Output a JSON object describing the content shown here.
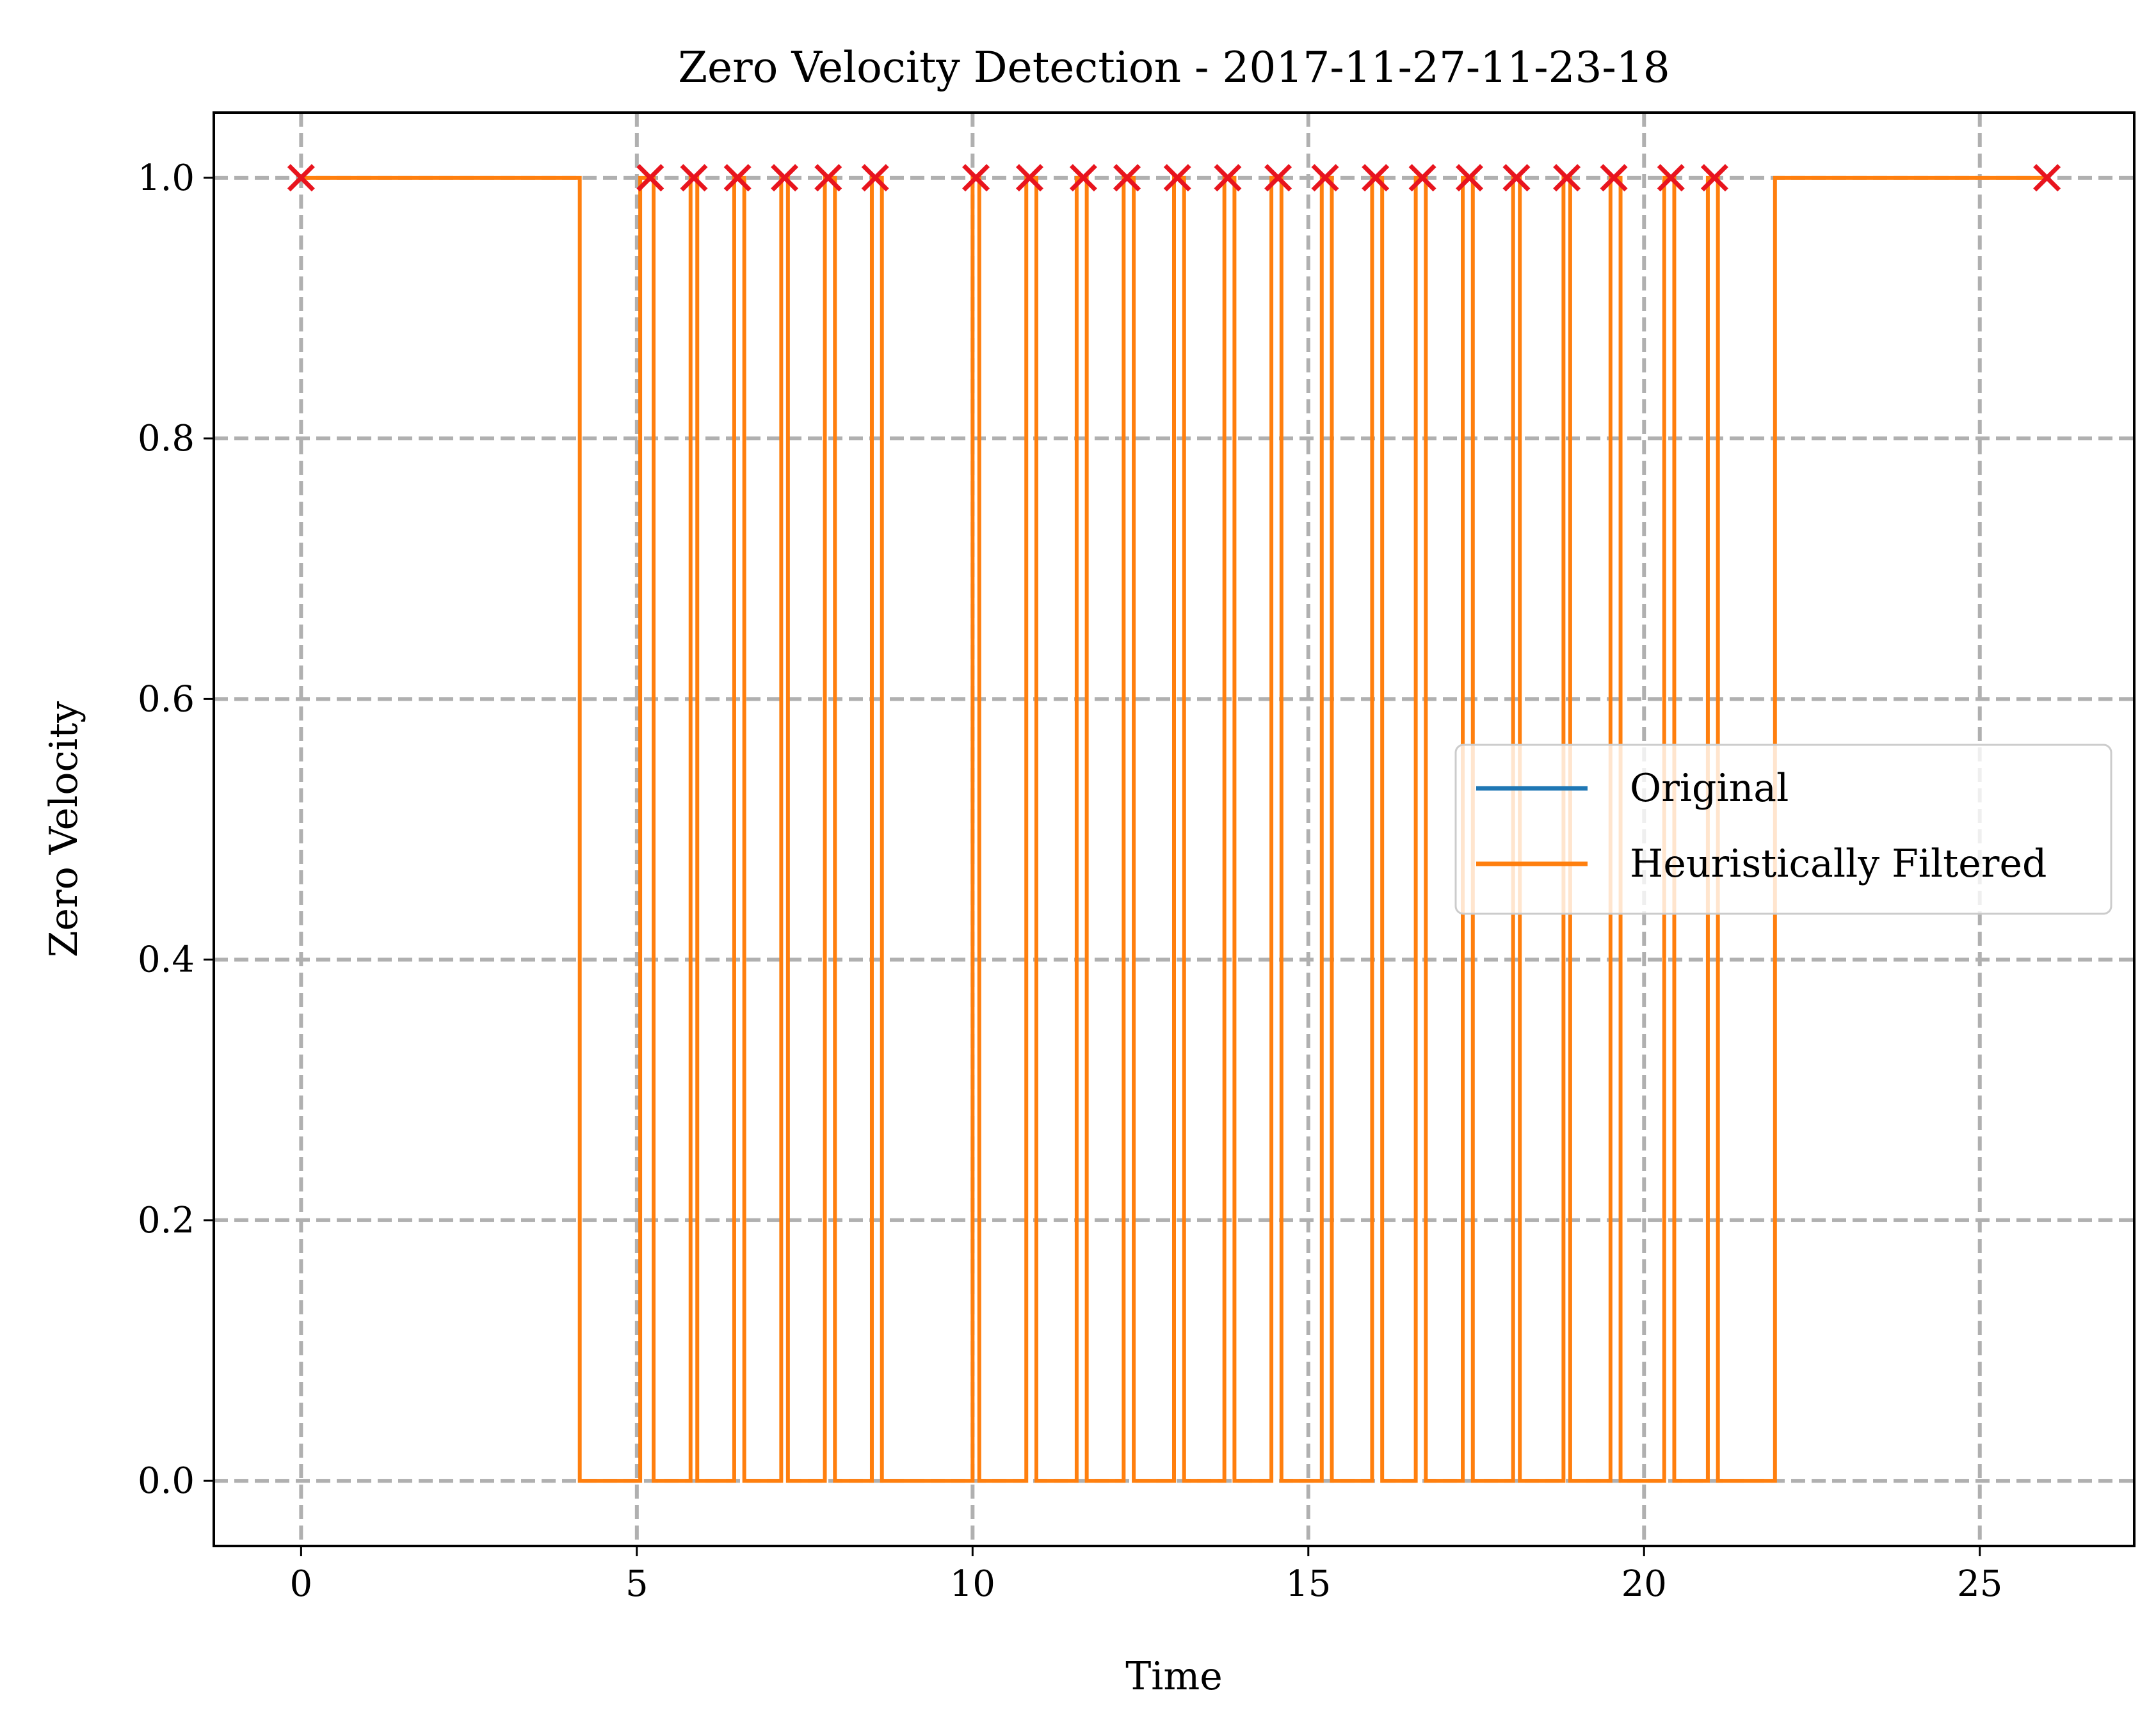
{
  "chart_data": {
    "type": "line",
    "title": "Zero Velocity Detection - 2017-11-27-11-23-18",
    "xlabel": "Time",
    "ylabel": "Zero Velocity",
    "xlim": [
      -1.3,
      27.3
    ],
    "ylim": [
      -0.05,
      1.05
    ],
    "x_ticks": [
      0,
      5,
      10,
      15,
      20,
      25
    ],
    "x_tick_labels": [
      "0",
      "5",
      "10",
      "15",
      "20",
      "25"
    ],
    "y_ticks": [
      0.0,
      0.2,
      0.4,
      0.6,
      0.8,
      1.0
    ],
    "y_tick_labels": [
      "0.0",
      "0.2",
      "0.4",
      "0.6",
      "0.8",
      "1.0"
    ],
    "grid": true,
    "legend_position": "center-right",
    "series": [
      {
        "name": "Original",
        "color": "#1f77b4",
        "style": "step",
        "zero_velocity_intervals": [
          [
            0.0,
            4.15
          ],
          [
            5.05,
            5.25
          ],
          [
            5.8,
            5.9
          ],
          [
            6.45,
            6.6
          ],
          [
            7.15,
            7.25
          ],
          [
            7.8,
            7.95
          ],
          [
            8.5,
            8.65
          ],
          [
            10.0,
            10.1
          ],
          [
            10.8,
            10.95
          ],
          [
            11.55,
            11.7
          ],
          [
            12.25,
            12.4
          ],
          [
            13.0,
            13.15
          ],
          [
            13.75,
            13.9
          ],
          [
            14.45,
            14.6
          ],
          [
            15.2,
            15.35
          ],
          [
            15.95,
            16.1
          ],
          [
            16.6,
            16.75
          ],
          [
            17.3,
            17.45
          ],
          [
            18.05,
            18.15
          ],
          [
            18.8,
            18.9
          ],
          [
            19.5,
            19.65
          ],
          [
            20.3,
            20.45
          ],
          [
            20.95,
            21.1
          ],
          [
            21.95,
            26.0
          ]
        ]
      },
      {
        "name": "Heuristically Filtered",
        "color": "#ff7f0e",
        "style": "step",
        "zero_velocity_intervals": [
          [
            0.0,
            4.15
          ],
          [
            5.05,
            5.25
          ],
          [
            5.8,
            5.9
          ],
          [
            6.45,
            6.6
          ],
          [
            7.15,
            7.25
          ],
          [
            7.8,
            7.95
          ],
          [
            8.5,
            8.65
          ],
          [
            10.0,
            10.1
          ],
          [
            10.8,
            10.95
          ],
          [
            11.55,
            11.7
          ],
          [
            12.25,
            12.4
          ],
          [
            13.0,
            13.15
          ],
          [
            13.75,
            13.9
          ],
          [
            14.45,
            14.6
          ],
          [
            15.2,
            15.35
          ],
          [
            15.95,
            16.1
          ],
          [
            16.6,
            16.75
          ],
          [
            17.3,
            17.45
          ],
          [
            18.05,
            18.15
          ],
          [
            18.8,
            18.9
          ],
          [
            19.5,
            19.65
          ],
          [
            20.3,
            20.45
          ],
          [
            20.95,
            21.1
          ],
          [
            21.95,
            26.0
          ]
        ]
      }
    ],
    "markers": {
      "symbol": "x",
      "color": "#e8141e",
      "y": 1.0,
      "x": [
        0.0,
        5.2,
        5.85,
        6.5,
        7.2,
        7.85,
        8.55,
        10.05,
        10.85,
        11.65,
        12.3,
        13.05,
        13.8,
        14.55,
        15.25,
        16.0,
        16.7,
        17.4,
        18.1,
        18.85,
        19.55,
        20.4,
        21.05,
        26.0
      ]
    }
  }
}
